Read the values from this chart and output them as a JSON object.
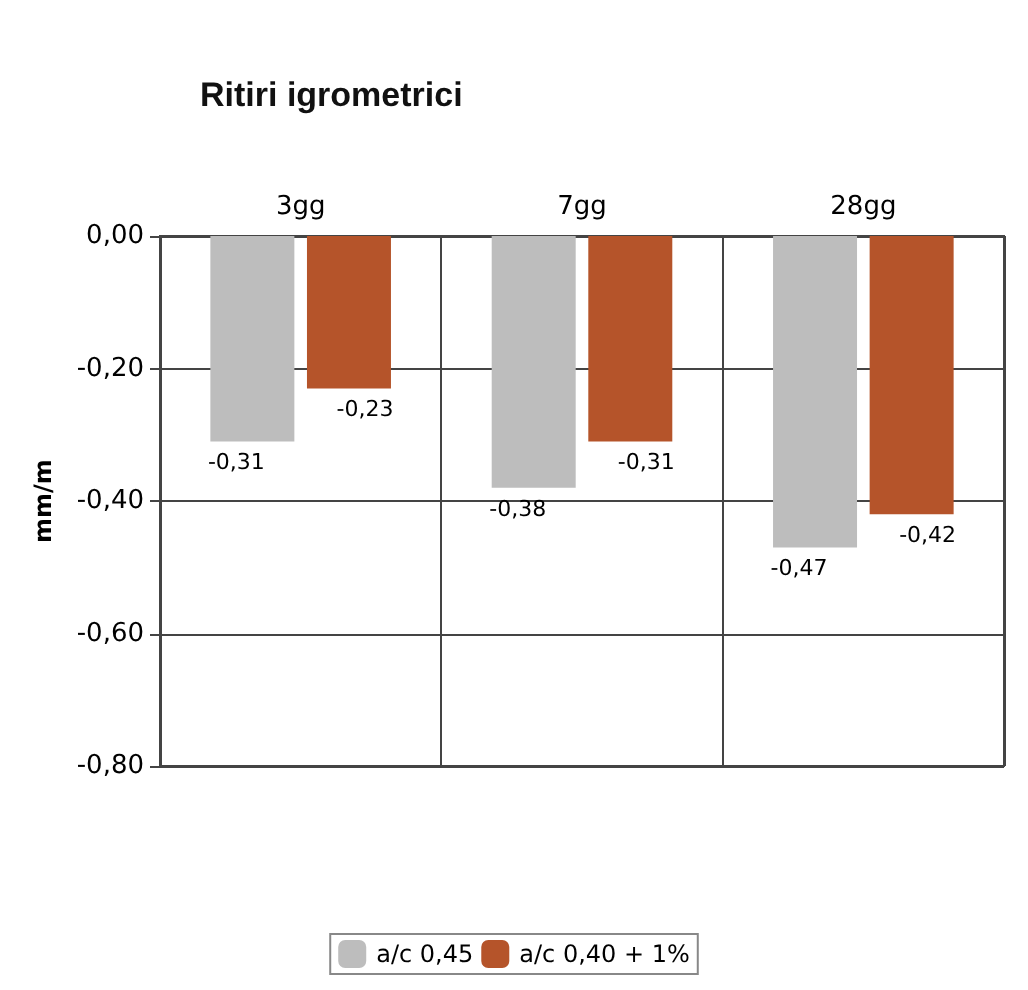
{
  "chart_data": {
    "type": "bar",
    "title": "Ritiri igrometrici",
    "ylabel": "mm/m",
    "categories": [
      "3gg",
      "7gg",
      "28gg"
    ],
    "series": [
      {
        "name": "a/c 0,45",
        "color": "#bdbdbd",
        "values": [
          -0.31,
          -0.38,
          -0.47
        ],
        "value_labels": [
          "-0,31",
          "-0,38",
          "-0,47"
        ]
      },
      {
        "name": "a/c 0,40 + 1%",
        "color": "#b5542a",
        "values": [
          -0.23,
          -0.31,
          -0.42
        ],
        "value_labels": [
          "-0,23",
          "-0,31",
          "-0,42"
        ]
      }
    ],
    "ylim": [
      -0.8,
      0
    ],
    "yticks": [
      {
        "value": 0,
        "label": "0,00"
      },
      {
        "value": -0.2,
        "label": "-0,20"
      },
      {
        "value": -0.4,
        "label": "-0,40"
      },
      {
        "value": -0.6,
        "label": "-0,60"
      },
      {
        "value": -0.8,
        "label": "-0,80"
      }
    ],
    "grid": true,
    "legend": "bottom"
  }
}
